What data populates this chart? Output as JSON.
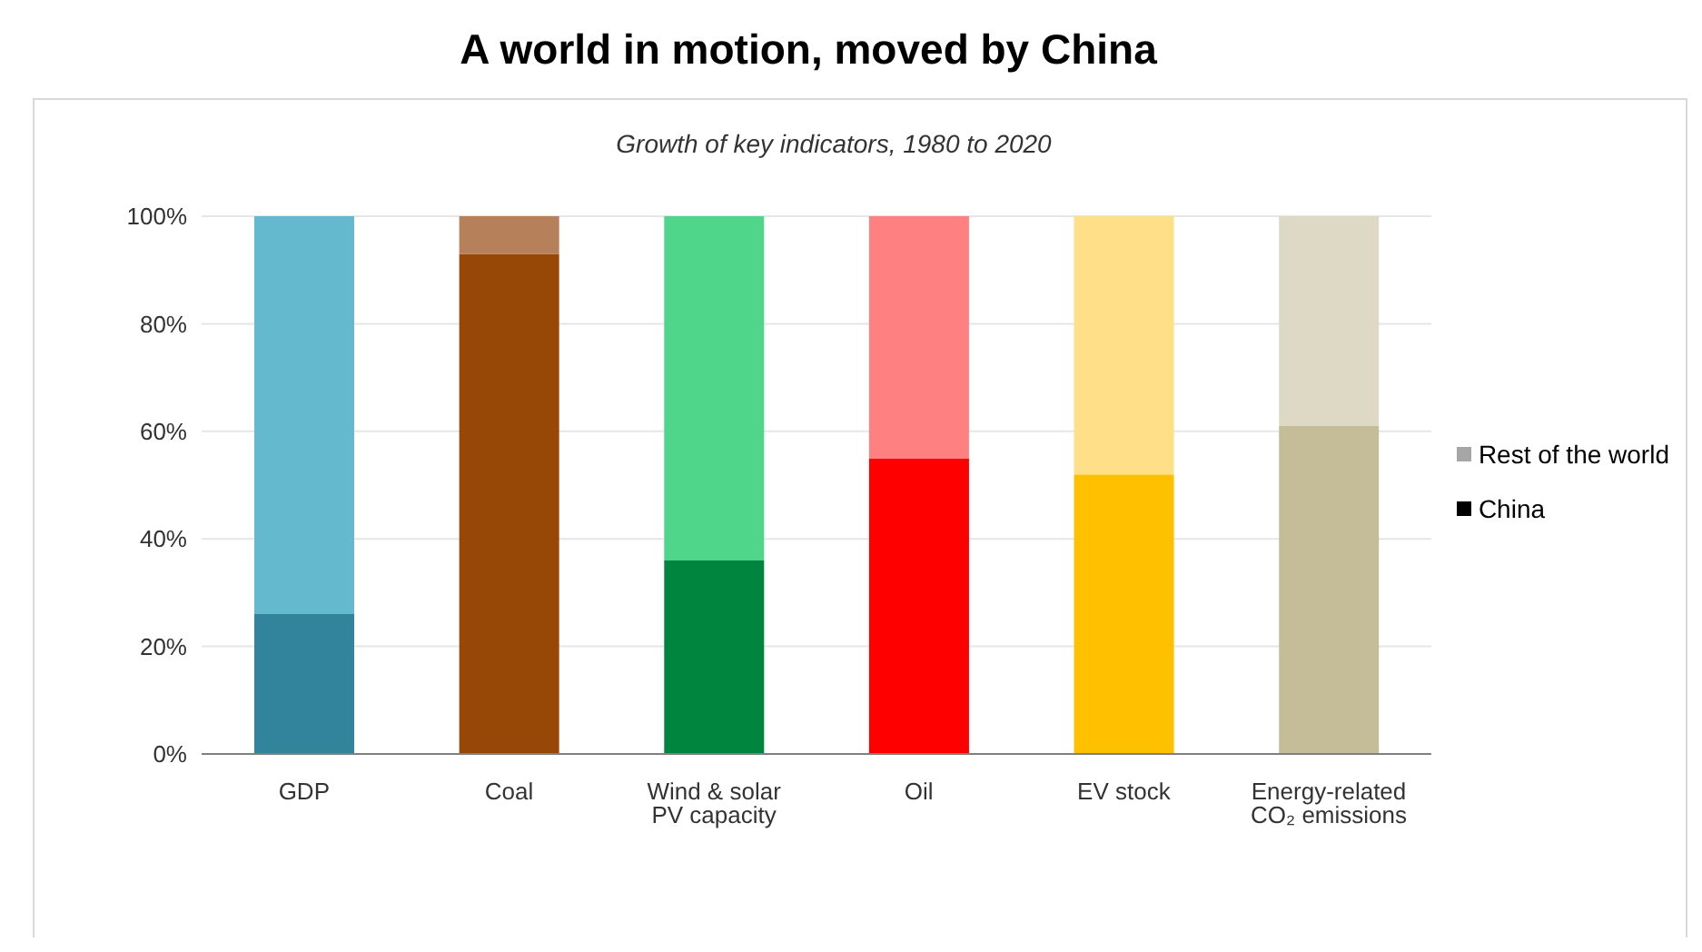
{
  "chart_data": {
    "type": "bar",
    "title": "A world in motion, moved by China",
    "subtitle": "Growth  of key indicators, 1980 to 2020",
    "categories": [
      "GDP",
      "Coal",
      "Wind & solar PV capacity",
      "Oil",
      "EV stock",
      "Energy-related CO₂ emissions"
    ],
    "series": [
      {
        "name": "China",
        "color": "#000000",
        "colors": [
          "#31849b",
          "#974706",
          "#00853e",
          "#ff0000",
          "#ffc000",
          "#c4bd97"
        ],
        "values": [
          26,
          93,
          36,
          55,
          52,
          61
        ]
      },
      {
        "name": "Rest of the world",
        "color": "#a6a6a6",
        "colors": [
          "#65b9cf",
          "#b5805a",
          "#4fd68b",
          "#ff8080",
          "#ffdf88",
          "#ddd9c4"
        ],
        "values": [
          74,
          7,
          64,
          45,
          48,
          39
        ]
      }
    ],
    "stacked": true,
    "ylim": [
      0,
      100
    ],
    "yticks": [
      {
        "value": 0,
        "label": "0%"
      },
      {
        "value": 20,
        "label": "20%"
      },
      {
        "value": 40,
        "label": "40%"
      },
      {
        "value": 60,
        "label": "60%"
      },
      {
        "value": 80,
        "label": "80%"
      },
      {
        "value": 100,
        "label": "100%"
      }
    ],
    "grid": "y",
    "legend": "right"
  }
}
